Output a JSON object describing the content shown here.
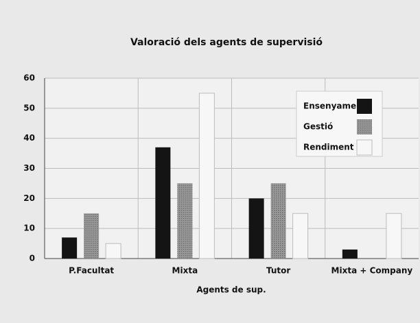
{
  "chart_data": {
    "type": "bar",
    "title": "Valoració dels agents de supervisió",
    "x_label": "Agents de sup.",
    "categories": [
      "P.Facultat",
      "Mixta",
      "Tutor",
      "Mixta + Company"
    ],
    "series": [
      {
        "name": "Ensenyament",
        "color": "#141414",
        "values": [
          7,
          37,
          20,
          3
        ]
      },
      {
        "name": "Gestió",
        "color": "#8a8a8a",
        "values": [
          15,
          25,
          25,
          0
        ]
      },
      {
        "name": "Rendiment",
        "color": "#f7f7f7",
        "values": [
          5,
          55,
          15,
          15
        ]
      }
    ],
    "ylim": [
      0,
      60
    ],
    "yticks": [
      0,
      10,
      20,
      30,
      40,
      50,
      60
    ],
    "grid": true,
    "legend": "top-right"
  }
}
